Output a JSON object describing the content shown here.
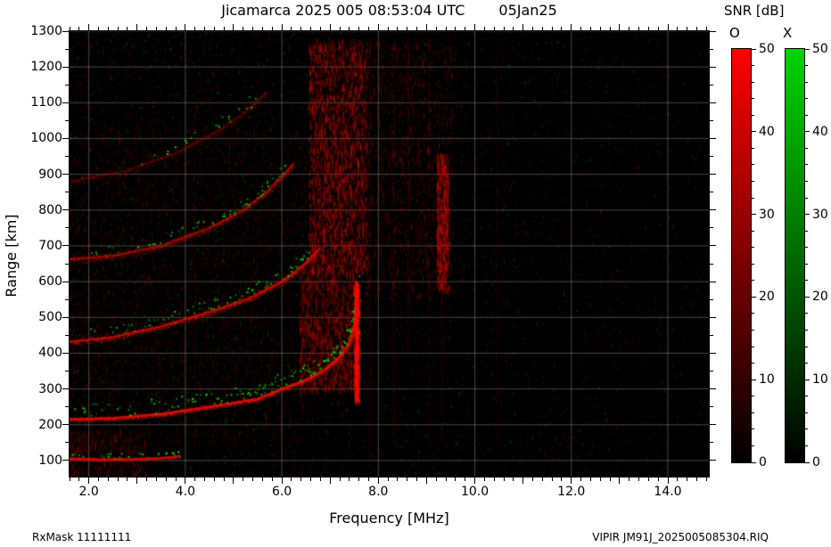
{
  "chart_data": {
    "type": "heatmap",
    "title": "Jicamarca 2025 005 08:53:04 UTC",
    "date_label": "05Jan25",
    "xlabel": "Frequency [MHz]",
    "ylabel": "Range [km]",
    "xlim": [
      1.6,
      14.85
    ],
    "ylim": [
      55,
      1300
    ],
    "xticks": [
      2.0,
      4.0,
      6.0,
      8.0,
      10.0,
      12.0,
      14.0
    ],
    "xtick_labels": [
      "2.0",
      "4.0",
      "6.0",
      "8.0",
      "10.0",
      "12.0",
      "14.0"
    ],
    "yticks": [
      100,
      200,
      300,
      400,
      500,
      600,
      700,
      800,
      900,
      1000,
      1100,
      1200,
      1300
    ],
    "x_minor_step": 0.2,
    "y_minor_step": 50,
    "grid_color": "rgba(255,255,255,0.28)",
    "background_color": "#000000",
    "colorbar": {
      "title": "SNR [dB]",
      "min": 0,
      "max": 50,
      "tick_values": [
        0,
        10,
        20,
        30,
        40,
        50
      ],
      "bars": [
        {
          "label": "O",
          "top_color": "#ff0000"
        },
        {
          "label": "X",
          "top_color": "#00d400"
        }
      ]
    },
    "traces": [
      {
        "name": "E-layer-echo",
        "points": [
          [
            1.6,
            106
          ],
          [
            2.2,
            103
          ],
          [
            2.9,
            104
          ],
          [
            3.5,
            107
          ],
          [
            3.9,
            112
          ]
        ],
        "spread_km": 6,
        "intensity": 0.8,
        "green": 0.45,
        "green_above_km": 12,
        "green_range": [
          1.6,
          3.9
        ]
      },
      {
        "name": "F-layer-1st-hop",
        "points": [
          [
            1.6,
            215
          ],
          [
            2.5,
            218
          ],
          [
            3.5,
            230
          ],
          [
            4.5,
            250
          ],
          [
            5.5,
            272
          ],
          [
            6.0,
            300
          ],
          [
            6.5,
            325
          ],
          [
            6.9,
            355
          ],
          [
            7.2,
            390
          ],
          [
            7.4,
            430
          ],
          [
            7.5,
            480
          ],
          [
            7.56,
            580
          ]
        ],
        "spread_km": 9,
        "intensity": 1.0,
        "green": 0.9,
        "green_above_km": 40,
        "green_range": [
          1.6,
          7.6
        ]
      },
      {
        "name": "F-layer-2nd-hop",
        "points": [
          [
            1.6,
            432
          ],
          [
            2.5,
            445
          ],
          [
            3.5,
            475
          ],
          [
            4.5,
            515
          ],
          [
            5.3,
            552
          ],
          [
            6.0,
            600
          ],
          [
            6.4,
            640
          ],
          [
            6.8,
            695
          ]
        ],
        "spread_km": 14,
        "intensity": 0.7,
        "green": 0.6,
        "green_above_km": 35,
        "green_range": [
          2.0,
          6.6
        ]
      },
      {
        "name": "F-layer-3rd-hop",
        "points": [
          [
            1.6,
            662
          ],
          [
            2.5,
            672
          ],
          [
            3.5,
            700
          ],
          [
            4.5,
            750
          ],
          [
            5.2,
            800
          ],
          [
            5.7,
            852
          ],
          [
            6.0,
            895
          ],
          [
            6.25,
            930
          ]
        ],
        "spread_km": 16,
        "intensity": 0.5,
        "green": 0.5,
        "green_above_km": 30,
        "green_range": [
          2.0,
          6.2
        ]
      },
      {
        "name": "F-layer-4th-hop",
        "points": [
          [
            1.6,
            880
          ],
          [
            2.8,
            910
          ],
          [
            3.8,
            960
          ],
          [
            4.6,
            1015
          ],
          [
            5.2,
            1070
          ],
          [
            5.7,
            1130
          ]
        ],
        "spread_km": 20,
        "intensity": 0.22,
        "green": 0.25,
        "green_above_km": 30,
        "green_range": [
          2.5,
          5.5
        ]
      }
    ],
    "critical_line": {
      "freq_mhz": 7.55,
      "range_km": [
        270,
        600
      ]
    },
    "interference": [
      {
        "freq": [
          6.55,
          7.75
        ],
        "range": [
          630,
          1280
        ],
        "density": 3000,
        "alpha": 0.34
      },
      {
        "freq": [
          7.75,
          9.55
        ],
        "range": [
          560,
          1280
        ],
        "density": 1200,
        "alpha": 0.2
      },
      {
        "freq": [
          9.2,
          9.45
        ],
        "range": [
          580,
          960
        ],
        "density": 700,
        "alpha": 0.38
      },
      {
        "freq": [
          6.35,
          7.55
        ],
        "range": [
          300,
          640
        ],
        "density": 1600,
        "alpha": 0.3
      },
      {
        "freq": [
          1.6,
          6.5
        ],
        "range": [
          150,
          1050
        ],
        "density": 3500,
        "alpha": 0.1
      },
      {
        "freq": [
          1.6,
          3.2
        ],
        "range": [
          60,
          190
        ],
        "density": 500,
        "alpha": 0.16
      }
    ],
    "stripes": [
      {
        "freq": 7.82,
        "range": [
          140,
          1280
        ],
        "alpha": 0.1,
        "width": 2
      },
      {
        "freq": 8.32,
        "range": [
          140,
          1280
        ],
        "alpha": 0.09,
        "width": 2
      },
      {
        "freq": 8.62,
        "range": [
          400,
          1280
        ],
        "alpha": 0.07,
        "width": 2
      },
      {
        "freq": 9.05,
        "range": [
          140,
          1280
        ],
        "alpha": 0.06,
        "width": 2
      },
      {
        "freq": 9.32,
        "range": [
          150,
          600
        ],
        "alpha": 0.08,
        "width": 2
      },
      {
        "freq": 10.45,
        "range": [
          140,
          1280
        ],
        "alpha": 0.05,
        "width": 2
      },
      {
        "freq": 4.2,
        "range": [
          140,
          1250
        ],
        "alpha": 0.05,
        "width": 2
      }
    ],
    "noise": {
      "count": 26000,
      "green_fraction": 0.32,
      "left_bias": 0.75
    }
  },
  "footer": {
    "rxmask": "RxMask 11111111",
    "file": "VIPIR  JM91J_2025005085304.RIQ"
  }
}
